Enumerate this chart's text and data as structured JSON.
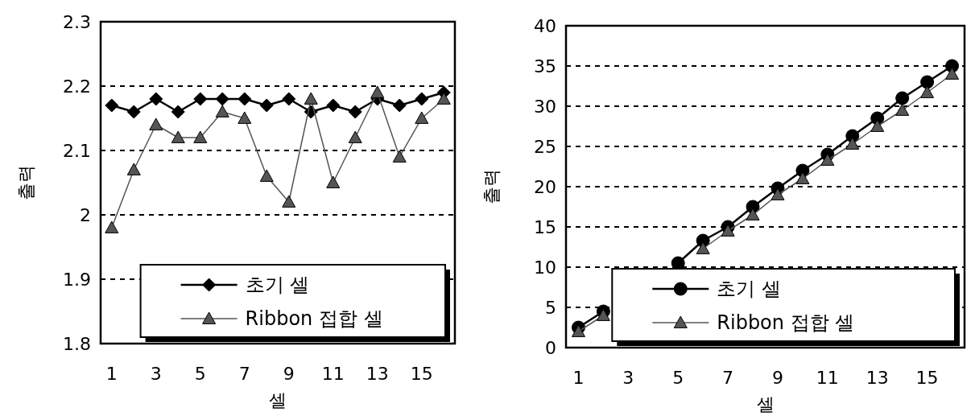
{
  "chart_data": [
    {
      "type": "line",
      "xlabel": "셀",
      "ylabel": "출력",
      "x": [
        1,
        2,
        3,
        4,
        5,
        6,
        7,
        8,
        9,
        10,
        11,
        12,
        13,
        14,
        15,
        16
      ],
      "xlim": [
        0.5,
        16.5
      ],
      "xticks": [
        1,
        3,
        5,
        7,
        9,
        11,
        13,
        15
      ],
      "ylim": [
        1.8,
        2.3
      ],
      "yticks": [
        1.8,
        1.9,
        2,
        2.1,
        2.2,
        2.3
      ],
      "grid": "y",
      "legend": "bottom right",
      "series": [
        {
          "name": "초기 셀",
          "color": "#000000",
          "marker": "diamond",
          "values": [
            2.17,
            2.16,
            2.18,
            2.16,
            2.18,
            2.18,
            2.18,
            2.17,
            2.18,
            2.16,
            2.17,
            2.16,
            2.18,
            2.17,
            2.18,
            2.19
          ]
        },
        {
          "name": "Ribbon 접합 셀",
          "color": "#555555",
          "marker": "triangle",
          "values": [
            1.98,
            2.07,
            2.14,
            2.12,
            2.12,
            2.16,
            2.15,
            2.06,
            2.02,
            2.18,
            2.05,
            2.12,
            2.19,
            2.09,
            2.15,
            2.18
          ]
        }
      ]
    },
    {
      "type": "line",
      "xlabel": "셀",
      "ylabel": "출력",
      "x": [
        1,
        2,
        3,
        4,
        5,
        6,
        7,
        8,
        9,
        10,
        11,
        12,
        13,
        14,
        15,
        16
      ],
      "xlim": [
        0.5,
        16.5
      ],
      "xticks": [
        1,
        3,
        5,
        7,
        9,
        11,
        13,
        15
      ],
      "ylim": [
        0,
        40
      ],
      "yticks": [
        0,
        5,
        10,
        15,
        20,
        25,
        30,
        35,
        40
      ],
      "grid": "y",
      "legend": "bottom right",
      "series": [
        {
          "name": "초기 셀",
          "color": "#000000",
          "marker": "circle",
          "values": [
            2.5,
            4.5,
            null,
            null,
            10.5,
            13.3,
            15,
            17.5,
            19.8,
            22,
            24,
            26.3,
            28.5,
            31,
            33,
            35
          ]
        },
        {
          "name": "Ribbon 접합 셀",
          "color": "#555555",
          "marker": "triangle",
          "values": [
            2,
            4,
            null,
            null,
            null,
            12.3,
            14.5,
            16.5,
            19,
            21,
            23.3,
            25.3,
            27.5,
            29.5,
            31.7,
            34
          ]
        }
      ]
    }
  ]
}
